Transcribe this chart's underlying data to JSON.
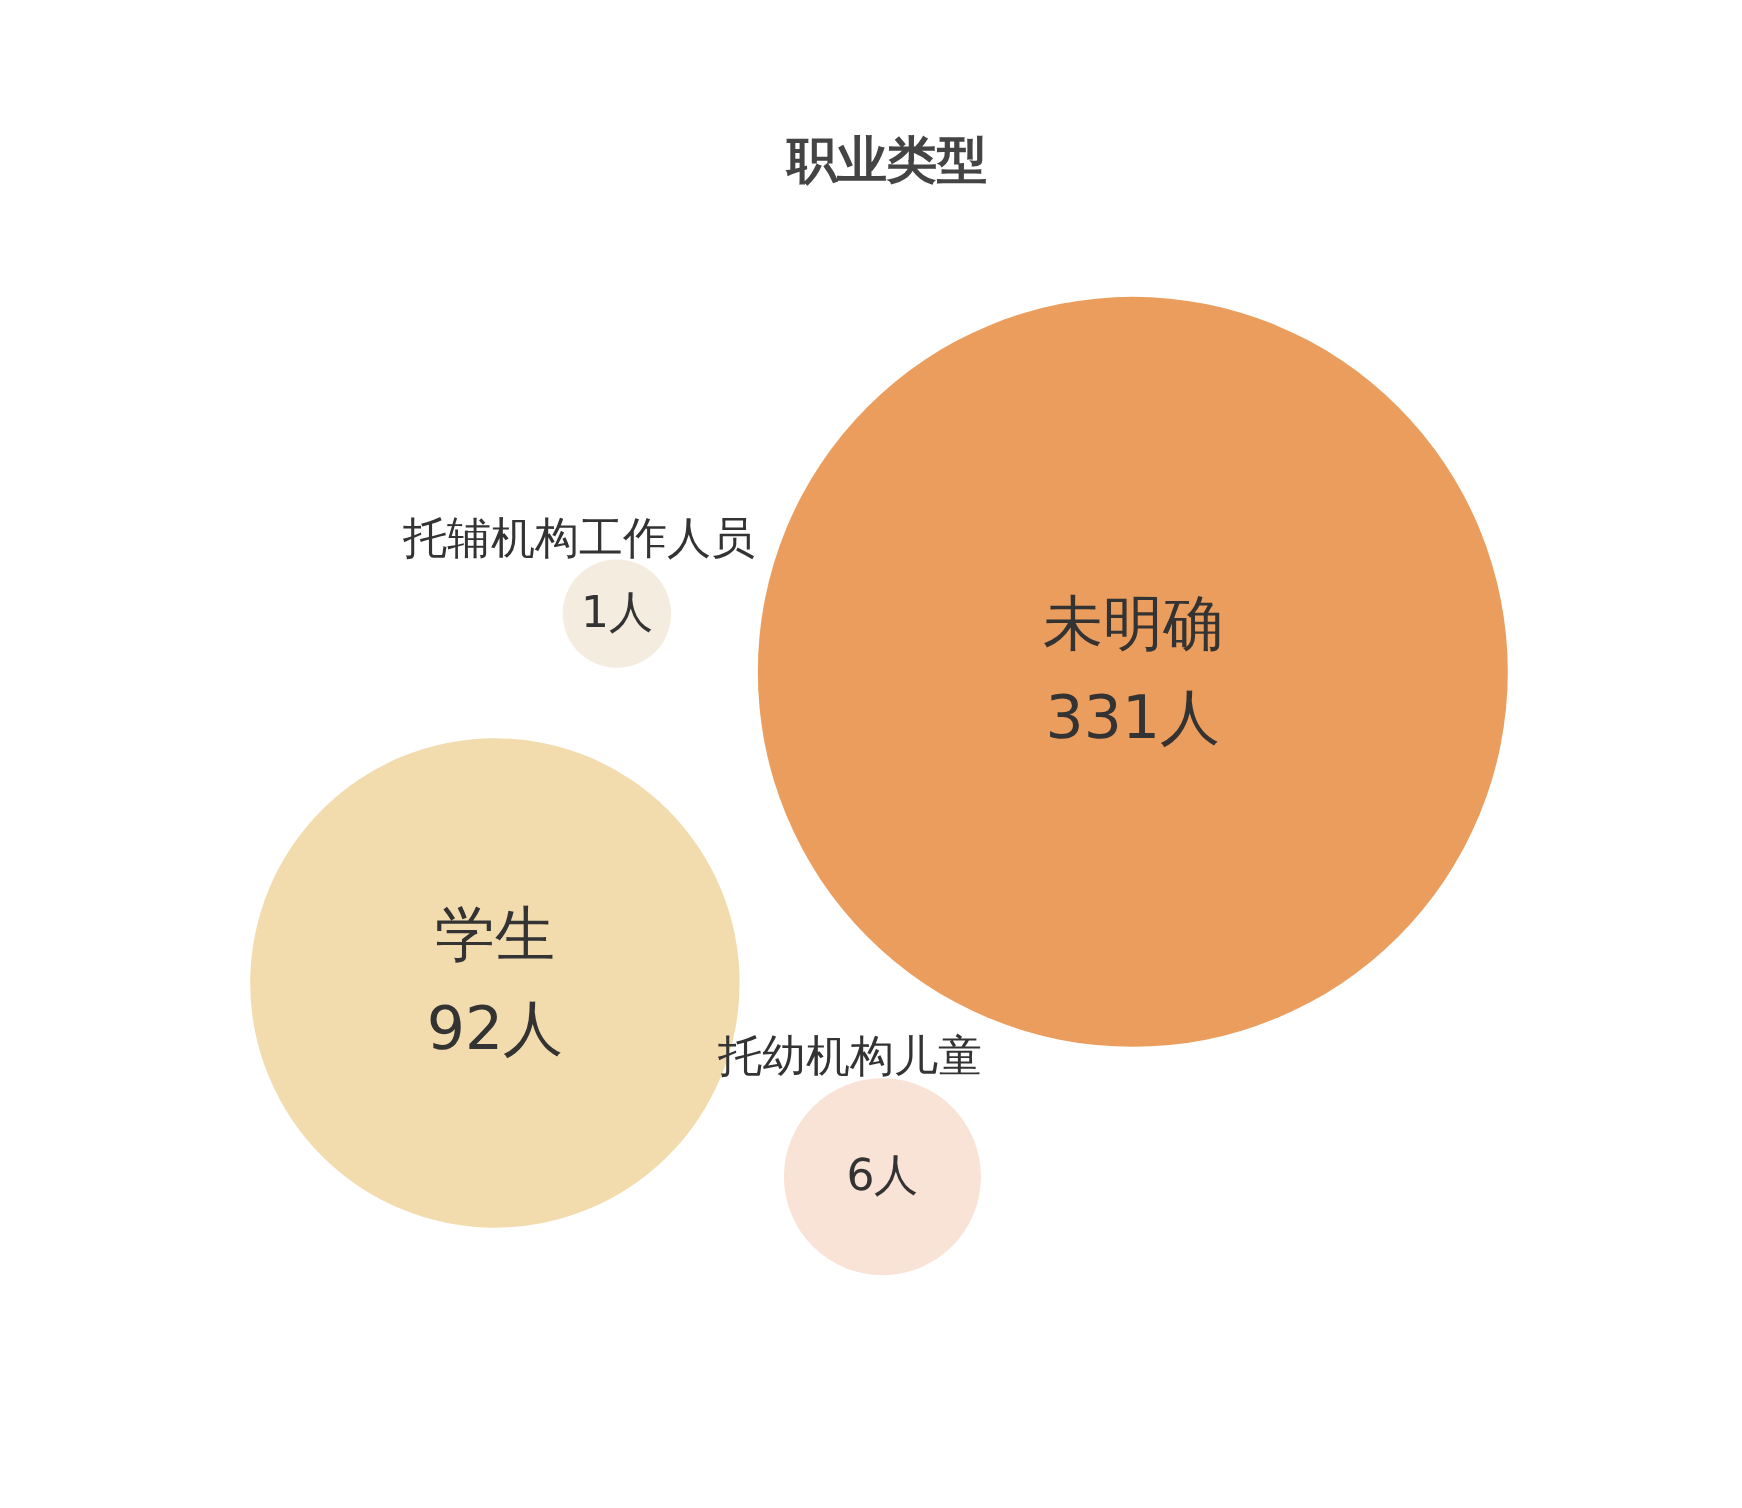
{
  "chart_data": {
    "type": "other",
    "title": "职业类型",
    "categories": [
      "未明确",
      "学生",
      "托幼机构儿童",
      "托辅机构工作人员"
    ],
    "values": [
      331,
      92,
      6,
      1
    ],
    "value_labels": [
      "331人",
      "92人",
      "6人",
      "1人"
    ],
    "colors": [
      "#ea9d5c",
      "#f2dcae",
      "#f9e2d6",
      "#f4ecdf"
    ]
  }
}
